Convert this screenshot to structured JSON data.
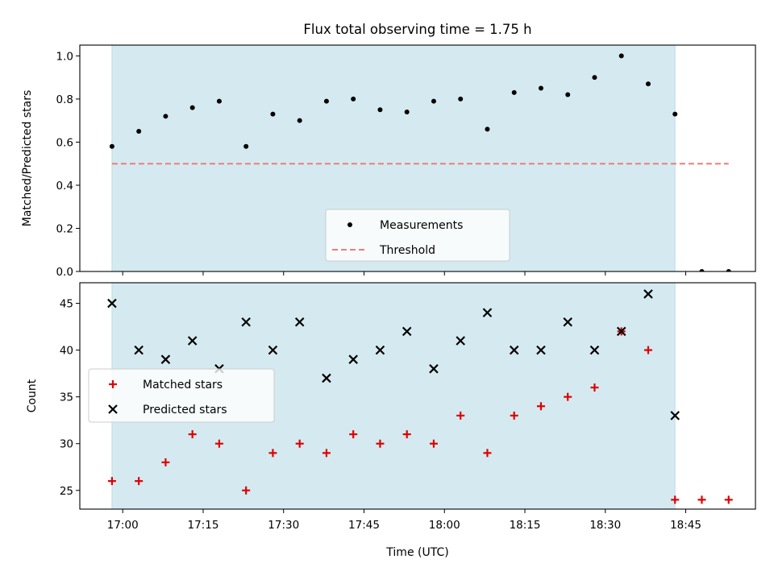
{
  "title": "Flux total observing time = 1.75 h",
  "xlabel": "Time (UTC)",
  "x_ticks": [
    "17:00",
    "17:15",
    "17:30",
    "17:45",
    "18:00",
    "18:15",
    "18:30",
    "18:45"
  ],
  "colors": {
    "shade": "#d4eaf0",
    "threshold": "#f07b7b",
    "matched": "#e00000",
    "predicted": "#000000",
    "measurement": "#000000"
  },
  "chart_data": [
    {
      "type": "scatter",
      "ylabel": "Matched/Predicted stars",
      "xlim": [
        "16:52",
        "18:58"
      ],
      "ylim": [
        0,
        1.05
      ],
      "y_ticks": [
        "0.0",
        "0.2",
        "0.4",
        "0.6",
        "0.8",
        "1.0"
      ],
      "shaded_span": [
        "16:58",
        "18:43"
      ],
      "x": [
        "16:58",
        "17:03",
        "17:08",
        "17:13",
        "17:18",
        "17:23",
        "17:28",
        "17:33",
        "17:38",
        "17:43",
        "17:48",
        "17:53",
        "17:58",
        "18:03",
        "18:08",
        "18:13",
        "18:18",
        "18:23",
        "18:28",
        "18:33",
        "18:38",
        "18:43",
        "18:48",
        "18:53"
      ],
      "series": [
        {
          "name": "Measurements",
          "marker": "dot",
          "values": [
            0.58,
            0.65,
            0.72,
            0.76,
            0.79,
            0.58,
            0.73,
            0.7,
            0.79,
            0.8,
            0.75,
            0.74,
            0.79,
            0.8,
            0.66,
            0.83,
            0.85,
            0.82,
            0.9,
            1.0,
            0.87,
            0.73,
            0.0,
            0.0
          ]
        },
        {
          "name": "Threshold",
          "marker": "dashed-line",
          "x_range": [
            "16:58",
            "18:53"
          ],
          "value": 0.5
        }
      ],
      "legend": "lower-center"
    },
    {
      "type": "scatter",
      "ylabel": "Count",
      "xlim": [
        "16:52",
        "18:58"
      ],
      "ylim": [
        23,
        47.2
      ],
      "y_ticks": [
        "25",
        "30",
        "35",
        "40",
        "45"
      ],
      "shaded_span": [
        "16:58",
        "18:43"
      ],
      "series": [
        {
          "name": "Matched stars",
          "marker": "plus",
          "x": [
            "16:58",
            "17:03",
            "17:08",
            "17:13",
            "17:18",
            "17:23",
            "17:28",
            "17:33",
            "17:38",
            "17:43",
            "17:48",
            "17:53",
            "17:58",
            "18:03",
            "18:08",
            "18:13",
            "18:18",
            "18:23",
            "18:28",
            "18:33",
            "18:38",
            "18:43",
            "18:48",
            "18:53"
          ],
          "values": [
            26,
            26,
            28,
            31,
            30,
            25,
            29,
            30,
            29,
            31,
            30,
            31,
            30,
            33,
            29,
            33,
            34,
            35,
            36,
            42,
            40,
            24,
            24,
            24
          ]
        },
        {
          "name": "Predicted stars",
          "marker": "x",
          "x": [
            "16:58",
            "17:03",
            "17:08",
            "17:13",
            "17:18",
            "17:23",
            "17:28",
            "17:33",
            "17:38",
            "17:43",
            "17:48",
            "17:53",
            "17:58",
            "18:03",
            "18:08",
            "18:13",
            "18:18",
            "18:23",
            "18:28",
            "18:33",
            "18:38",
            "18:43"
          ],
          "values": [
            45,
            40,
            39,
            41,
            38,
            43,
            40,
            43,
            37,
            39,
            40,
            42,
            38,
            41,
            44,
            40,
            40,
            43,
            40,
            42,
            46,
            33
          ]
        }
      ],
      "legend": "center-left"
    }
  ]
}
